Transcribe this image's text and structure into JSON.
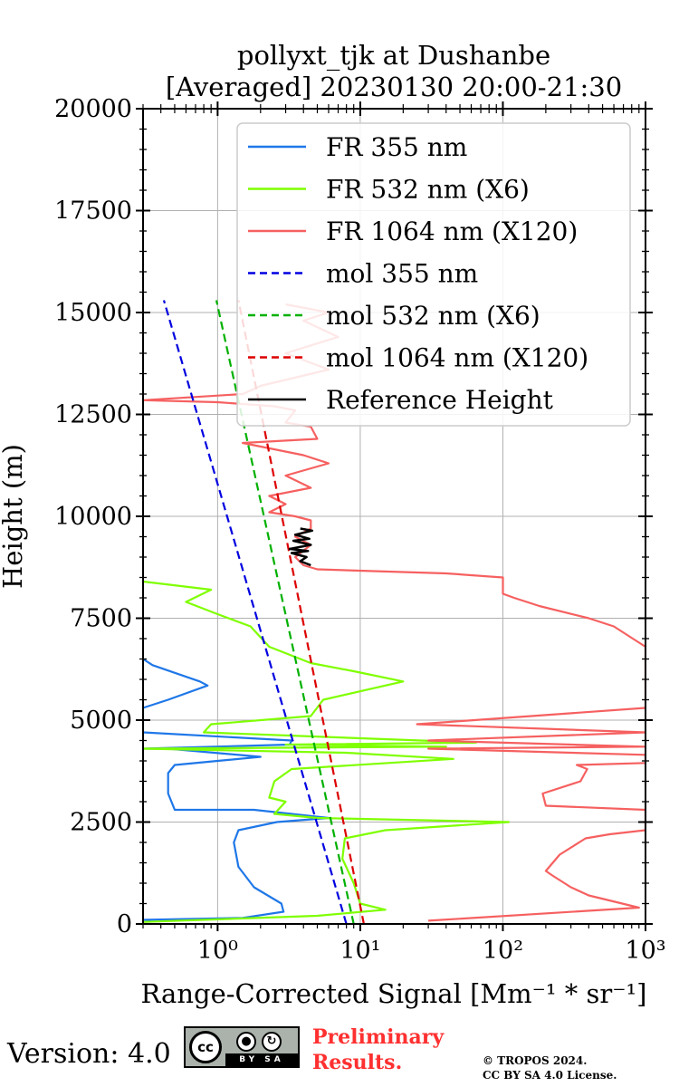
{
  "chart_data": {
    "type": "line",
    "title": [
      "pollyxt_tjk at Dushanbe",
      "[Averaged] 20230130 20:00-21:30"
    ],
    "xlabel": "Range-Corrected Signal [Mm⁻¹ * sr⁻¹]",
    "ylabel": "Height (m)",
    "xscale": "log",
    "xlim": [
      0.3,
      1000
    ],
    "ylim": [
      0,
      20000
    ],
    "grid": true,
    "legend_position": "top-right",
    "x_ticks": [
      {
        "value": 1,
        "label": "10⁰"
      },
      {
        "value": 10,
        "label": "10¹"
      },
      {
        "value": 100,
        "label": "10²"
      },
      {
        "value": 1000,
        "label": "10³"
      }
    ],
    "y_ticks": [
      0,
      2500,
      5000,
      7500,
      10000,
      12500,
      15000,
      17500,
      20000
    ],
    "series": [
      {
        "name": "FR 355 nm",
        "color": "#1f77e8",
        "style": "solid",
        "points": [
          [
            0.3,
            100
          ],
          [
            1.5,
            150
          ],
          [
            2.9,
            300
          ],
          [
            2.8,
            500
          ],
          [
            1.8,
            900
          ],
          [
            1.4,
            1400
          ],
          [
            1.3,
            2000
          ],
          [
            1.4,
            2300
          ],
          [
            2.6,
            2500
          ],
          [
            6.0,
            2600
          ],
          [
            1.8,
            2800
          ],
          [
            0.5,
            2800
          ],
          [
            0.45,
            3200
          ],
          [
            0.45,
            3700
          ],
          [
            0.5,
            3900
          ],
          [
            1.0,
            4000
          ],
          [
            2.0,
            4100
          ],
          [
            0.45,
            4300
          ],
          [
            0.3,
            4300
          ],
          [
            3.2,
            4400
          ],
          [
            3.3,
            4500
          ],
          [
            0.3,
            4700
          ],
          [
            0.3,
            5300
          ],
          [
            0.45,
            5500
          ],
          [
            0.85,
            5850
          ],
          [
            0.75,
            5950
          ],
          [
            0.35,
            6350
          ],
          [
            0.3,
            6500
          ]
        ]
      },
      {
        "name": "FR 532 nm (X6)",
        "color": "#7fff00",
        "style": "solid",
        "points": [
          [
            0.3,
            50
          ],
          [
            5.0,
            200
          ],
          [
            15.0,
            350
          ],
          [
            10.0,
            500
          ],
          [
            9.0,
            1000
          ],
          [
            7.5,
            1600
          ],
          [
            7.8,
            2100
          ],
          [
            15.0,
            2300
          ],
          [
            110,
            2500
          ],
          [
            5.0,
            2600
          ],
          [
            2.5,
            2700
          ],
          [
            3.0,
            3000
          ],
          [
            2.3,
            3100
          ],
          [
            2.5,
            3500
          ],
          [
            3.3,
            3800
          ],
          [
            45,
            4050
          ],
          [
            8.0,
            4200
          ],
          [
            0.3,
            4300
          ],
          [
            40,
            4350
          ],
          [
            3.0,
            4400
          ],
          [
            65,
            4450
          ],
          [
            0.8,
            4700
          ],
          [
            0.9,
            4900
          ],
          [
            4.5,
            5100
          ],
          [
            5.5,
            5500
          ],
          [
            20,
            5950
          ],
          [
            9.0,
            6200
          ],
          [
            4.5,
            6400
          ],
          [
            2.3,
            6800
          ],
          [
            1.7,
            7300
          ],
          [
            1.0,
            7600
          ],
          [
            0.6,
            7900
          ],
          [
            0.9,
            8200
          ],
          [
            0.3,
            8400
          ]
        ]
      },
      {
        "name": "FR 1064 nm (X120)",
        "color": "#f66060",
        "style": "solid",
        "points": [
          [
            30,
            80
          ],
          [
            900,
            400
          ],
          [
            400,
            700
          ],
          [
            300,
            900
          ],
          [
            220,
            1200
          ],
          [
            200,
            1300
          ],
          [
            250,
            1700
          ],
          [
            380,
            2100
          ],
          [
            560,
            2200
          ],
          [
            1000,
            2300
          ],
          [
            1000,
            2800
          ],
          [
            200,
            2900
          ],
          [
            190,
            3200
          ],
          [
            350,
            3500
          ],
          [
            390,
            3800
          ],
          [
            330,
            3900
          ],
          [
            1000,
            3950
          ],
          [
            1000,
            4150
          ],
          [
            30,
            4300
          ],
          [
            1000,
            4350
          ],
          [
            30,
            4500
          ],
          [
            1000,
            4700
          ],
          [
            25,
            4900
          ],
          [
            1000,
            5300
          ],
          [
            1000,
            6800
          ],
          [
            600,
            7300
          ],
          [
            400,
            7500
          ],
          [
            180,
            7800
          ],
          [
            120,
            8000
          ],
          [
            100,
            8100
          ],
          [
            100,
            8500
          ],
          [
            40,
            8600
          ],
          [
            5.0,
            8700
          ],
          [
            4.0,
            8800
          ],
          [
            3.5,
            9000
          ],
          [
            4.5,
            9300
          ],
          [
            3.5,
            9500
          ],
          [
            4.5,
            9700
          ],
          [
            4.5,
            9900
          ],
          [
            3.5,
            10000
          ],
          [
            2.3,
            10100
          ],
          [
            3.0,
            10300
          ],
          [
            2.3,
            10500
          ],
          [
            4.5,
            10700
          ],
          [
            3.0,
            11000
          ],
          [
            6.0,
            11300
          ],
          [
            4.0,
            11500
          ],
          [
            1.5,
            11800
          ],
          [
            5.0,
            11900
          ],
          [
            4.5,
            12200
          ],
          [
            3.0,
            12300
          ],
          [
            3.5,
            12600
          ],
          [
            2.5,
            12700
          ],
          [
            1.0,
            12800
          ],
          [
            0.3,
            12850
          ],
          [
            1.5,
            13000
          ],
          [
            2.0,
            13200
          ],
          [
            6.0,
            13600
          ],
          [
            3.0,
            14000
          ],
          [
            7.0,
            14400
          ],
          [
            4.0,
            14800
          ],
          [
            6.0,
            15000
          ],
          [
            3.0,
            15200
          ]
        ]
      },
      {
        "name": "mol 355 nm",
        "color": "#0000e0",
        "style": "dashed",
        "points": [
          [
            8.0,
            0
          ],
          [
            0.42,
            15300
          ]
        ]
      },
      {
        "name": "mol 532 nm (X6)",
        "color": "#00b000",
        "style": "dashed",
        "points": [
          [
            9.0,
            0
          ],
          [
            0.98,
            15300
          ]
        ]
      },
      {
        "name": "mol 1064 nm (X120)",
        "color": "#dd0000",
        "style": "dashed",
        "points": [
          [
            10.6,
            0
          ],
          [
            1.4,
            15300
          ]
        ]
      },
      {
        "name": "Reference Height",
        "color": "#000000",
        "style": "solid",
        "points": [
          [
            4.5,
            8800
          ],
          [
            3.8,
            8900
          ],
          [
            4.2,
            9000
          ],
          [
            3.3,
            9100
          ],
          [
            4.3,
            9150
          ],
          [
            3.2,
            9200
          ],
          [
            4.5,
            9300
          ],
          [
            3.4,
            9400
          ],
          [
            4.4,
            9450
          ],
          [
            3.5,
            9550
          ],
          [
            4.6,
            9650
          ],
          [
            3.8,
            9700
          ]
        ]
      }
    ]
  },
  "footer": {
    "version": "Version: 4.0",
    "license_badge": {
      "icon": "cc-by-sa-icon",
      "strip": "BY SA",
      "cc": "cc"
    },
    "preliminary": [
      "Preliminary",
      "Results."
    ],
    "copyright": [
      "© TROPOS 2024.",
      "CC BY SA 4.0 License."
    ]
  }
}
